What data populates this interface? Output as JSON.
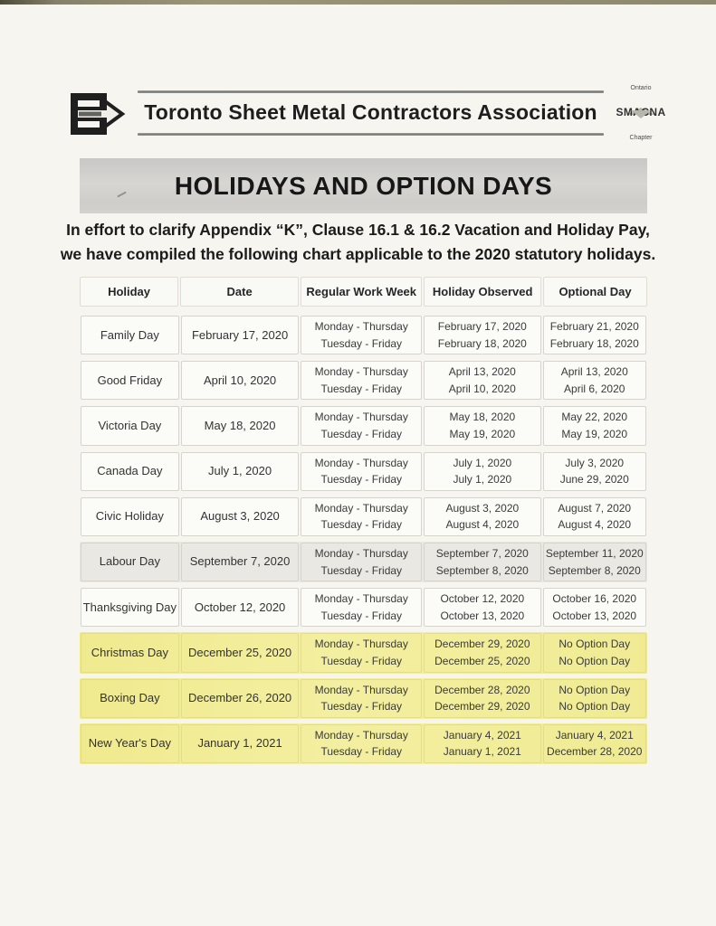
{
  "header": {
    "title": "Toronto Sheet Metal Contractors Association",
    "smacna": {
      "region": "Ontario",
      "name": "SMACNA",
      "chapter": "Chapter"
    }
  },
  "banner": {
    "title": "HOLIDAYS AND OPTION DAYS"
  },
  "intro": {
    "line1": "In effort to clarify Appendix “K”, Clause 16.1 & 16.2 Vacation and Holiday Pay,",
    "line2": "we have compiled the following chart applicable to the 2020 statutory holidays."
  },
  "table": {
    "columns": [
      "Holiday",
      "Date",
      "Regular Work Week",
      "Holiday Observed",
      "Optional Day"
    ],
    "rows": [
      {
        "holiday": "Family Day",
        "date": "February 17, 2020",
        "work_week": [
          "Monday - Thursday",
          "Tuesday - Friday"
        ],
        "observed": [
          "February 17, 2020",
          "February 18, 2020"
        ],
        "optional": [
          "February 21, 2020",
          "February 18, 2020"
        ],
        "highlight": "none"
      },
      {
        "holiday": "Good Friday",
        "date": "April 10, 2020",
        "work_week": [
          "Monday - Thursday",
          "Tuesday - Friday"
        ],
        "observed": [
          "April 13, 2020",
          "April 10, 2020"
        ],
        "optional": [
          "April 13, 2020",
          "April 6, 2020"
        ],
        "highlight": "none"
      },
      {
        "holiday": "Victoria Day",
        "date": "May 18, 2020",
        "work_week": [
          "Monday - Thursday",
          "Tuesday - Friday"
        ],
        "observed": [
          "May 18, 2020",
          "May 19, 2020"
        ],
        "optional": [
          "May 22, 2020",
          "May 19, 2020"
        ],
        "highlight": "none"
      },
      {
        "holiday": "Canada Day",
        "date": "July 1, 2020",
        "work_week": [
          "Monday - Thursday",
          "Tuesday - Friday"
        ],
        "observed": [
          "July 1, 2020",
          "July 1, 2020"
        ],
        "optional": [
          "July 3, 2020",
          "June 29, 2020"
        ],
        "highlight": "none"
      },
      {
        "holiday": "Civic Holiday",
        "date": "August 3, 2020",
        "work_week": [
          "Monday - Thursday",
          "Tuesday - Friday"
        ],
        "observed": [
          "August 3, 2020",
          "August 4, 2020"
        ],
        "optional": [
          "August 7, 2020",
          "August 4, 2020"
        ],
        "highlight": "none"
      },
      {
        "holiday": "Labour Day",
        "date": "September 7, 2020",
        "work_week": [
          "Monday - Thursday",
          "Tuesday - Friday"
        ],
        "observed": [
          "September 7, 2020",
          "September 8, 2020"
        ],
        "optional": [
          "September 11, 2020",
          "September 8, 2020"
        ],
        "highlight": "gray"
      },
      {
        "holiday": "Thanksgiving Day",
        "date": "October 12, 2020",
        "work_week": [
          "Monday - Thursday",
          "Tuesday - Friday"
        ],
        "observed": [
          "October 12, 2020",
          "October 13, 2020"
        ],
        "optional": [
          "October 16, 2020",
          "October 13, 2020"
        ],
        "highlight": "none"
      },
      {
        "holiday": "Christmas Day",
        "date": "December 25, 2020",
        "work_week": [
          "Monday - Thursday",
          "Tuesday - Friday"
        ],
        "observed": [
          "December 29, 2020",
          "December 25, 2020"
        ],
        "optional": [
          "No Option Day",
          "No Option Day"
        ],
        "highlight": "yellow"
      },
      {
        "holiday": "Boxing Day",
        "date": "December 26, 2020",
        "work_week": [
          "Monday - Thursday",
          "Tuesday - Friday"
        ],
        "observed": [
          "December 28, 2020",
          "December 29, 2020"
        ],
        "optional": [
          "No Option Day",
          "No Option Day"
        ],
        "highlight": "yellow"
      },
      {
        "holiday": "New Year's Day",
        "date": "January 1, 2021",
        "work_week": [
          "Monday - Thursday",
          "Tuesday - Friday"
        ],
        "observed": [
          "January 4, 2021",
          "January 1, 2021"
        ],
        "optional": [
          "January 4, 2021",
          "December 28, 2020"
        ],
        "highlight": "yellow"
      }
    ]
  }
}
